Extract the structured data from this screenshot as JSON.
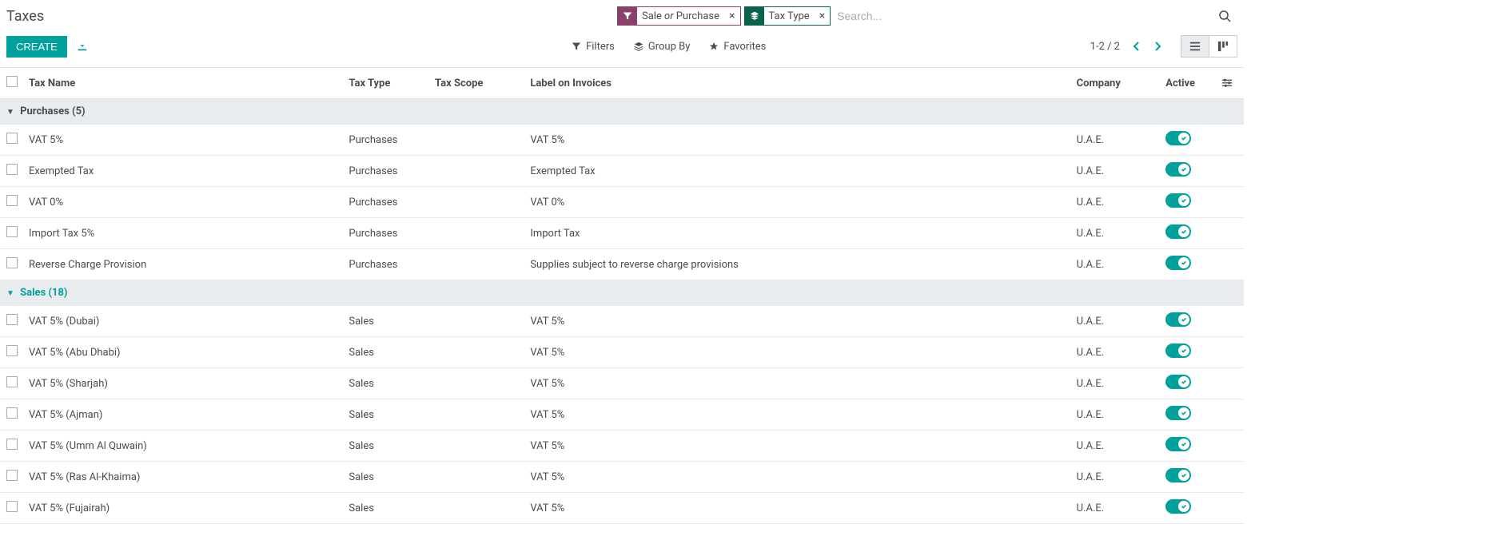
{
  "page_title": "Taxes",
  "search": {
    "facets": [
      {
        "type": "filter",
        "label_parts": [
          "Sale",
          " or ",
          "Purchase"
        ],
        "italic_middle": true
      },
      {
        "type": "group",
        "label": "Tax Type"
      }
    ],
    "placeholder": "Search..."
  },
  "buttons": {
    "create": "CREATE"
  },
  "controls": {
    "filters": "Filters",
    "group_by": "Group By",
    "favorites": "Favorites"
  },
  "pager": {
    "text": "1-2 / 2"
  },
  "columns": {
    "name": "Tax Name",
    "type": "Tax Type",
    "scope": "Tax Scope",
    "label": "Label on Invoices",
    "company": "Company",
    "active": "Active"
  },
  "groups": [
    {
      "title": "Purchases (5)",
      "highlight": false,
      "rows": [
        {
          "name": "VAT 5%",
          "type": "Purchases",
          "scope": "",
          "label": "VAT 5%",
          "company": "U.A.E.",
          "active": true
        },
        {
          "name": "Exempted Tax",
          "type": "Purchases",
          "scope": "",
          "label": "Exempted Tax",
          "company": "U.A.E.",
          "active": true
        },
        {
          "name": "VAT 0%",
          "type": "Purchases",
          "scope": "",
          "label": "VAT 0%",
          "company": "U.A.E.",
          "active": true
        },
        {
          "name": "Import Tax 5%",
          "type": "Purchases",
          "scope": "",
          "label": "Import Tax",
          "company": "U.A.E.",
          "active": true
        },
        {
          "name": "Reverse Charge Provision",
          "type": "Purchases",
          "scope": "",
          "label": "Supplies subject to reverse charge provisions",
          "company": "U.A.E.",
          "active": true
        }
      ]
    },
    {
      "title": "Sales (18)",
      "highlight": true,
      "rows": [
        {
          "name": "VAT 5% (Dubai)",
          "type": "Sales",
          "scope": "",
          "label": "VAT 5%",
          "company": "U.A.E.",
          "active": true
        },
        {
          "name": "VAT 5% (Abu Dhabi)",
          "type": "Sales",
          "scope": "",
          "label": "VAT 5%",
          "company": "U.A.E.",
          "active": true
        },
        {
          "name": "VAT 5% (Sharjah)",
          "type": "Sales",
          "scope": "",
          "label": "VAT 5%",
          "company": "U.A.E.",
          "active": true
        },
        {
          "name": "VAT 5% (Ajman)",
          "type": "Sales",
          "scope": "",
          "label": "VAT 5%",
          "company": "U.A.E.",
          "active": true
        },
        {
          "name": "VAT 5% (Umm Al Quwain)",
          "type": "Sales",
          "scope": "",
          "label": "VAT 5%",
          "company": "U.A.E.",
          "active": true
        },
        {
          "name": "VAT 5% (Ras Al-Khaima)",
          "type": "Sales",
          "scope": "",
          "label": "VAT 5%",
          "company": "U.A.E.",
          "active": true
        },
        {
          "name": "VAT 5% (Fujairah)",
          "type": "Sales",
          "scope": "",
          "label": "VAT 5%",
          "company": "U.A.E.",
          "active": true
        }
      ]
    }
  ],
  "colors": {
    "primary": "#00a09d",
    "filter_facet": "#89406b",
    "group_facet": "#07634c",
    "group_bg": "#e9ecef",
    "border": "#dee2e6",
    "text": "#4c4c4c"
  }
}
